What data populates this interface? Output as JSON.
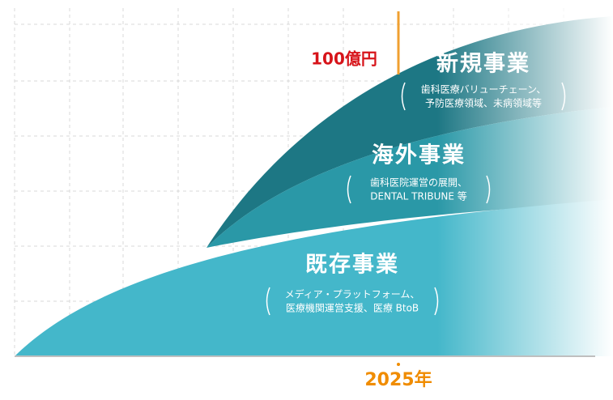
{
  "target": "100億円",
  "year": "2025年",
  "layers": [
    {
      "title": "新規事業",
      "description": [
        "歯科医療バリューチェーン、",
        "予防医療領域、未病領域等"
      ]
    },
    {
      "title": "海外事業",
      "description": [
        "歯科医院運営の展開、",
        "DENTAL TRIBUNE 等"
      ]
    },
    {
      "title": "既存事業",
      "description": [
        "メディア・プラットフォーム、",
        "医療機関運営支援、医療 BtoB"
      ]
    }
  ]
}
